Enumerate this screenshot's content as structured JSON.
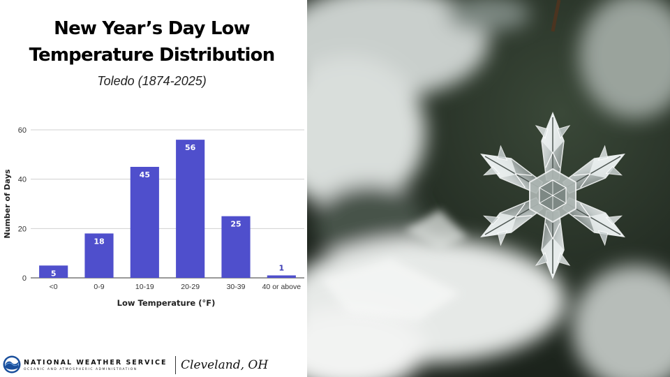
{
  "title_line1": "New Year’s Day Low",
  "title_line2": "Temperature Distribution",
  "subtitle": "Toledo (1874-2025)",
  "footer": {
    "agency": "NATIONAL WEATHER SERVICE",
    "agency_sub": "OCEANIC AND ATMOSPHERIC ADMINISTRATION",
    "office": "Cleveland, OH"
  },
  "photo_subject": "crystal snowflake ornament",
  "chart_data": {
    "type": "bar",
    "categories": [
      "<0",
      "0-9",
      "10-19",
      "20-29",
      "30-39",
      "40 or above"
    ],
    "values": [
      5,
      18,
      45,
      56,
      25,
      1
    ],
    "xlabel": "Low Temperature (°F)",
    "ylabel": "Number of Days",
    "ylim": [
      0,
      60
    ],
    "yticks": [
      0,
      20,
      40,
      60
    ],
    "grid": true,
    "bar_color": "#4f4fcc",
    "label_color_inside": "#ffffff",
    "label_color_outside": "#3c3cb4"
  }
}
